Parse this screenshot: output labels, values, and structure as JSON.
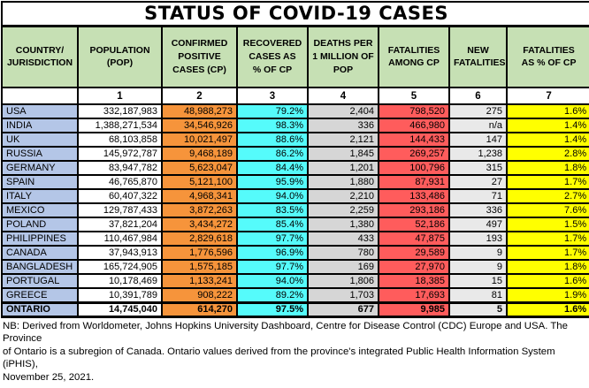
{
  "title": "STATUS OF COVID-19 CASES",
  "table": {
    "headers": [
      "COUNTRY/\nJURISDICTION",
      "POPULATION\n(POP)",
      "CONFIRMED\nPOSITIVE\nCASES (CP)",
      "RECOVERED\nCASES AS\n% OF CP",
      "DEATHS PER\n1 MILLION OF\nPOP",
      "FATALITIES\nAMONG CP",
      "NEW\nFATALITIES",
      "FATALITIES\nAS % OF CP"
    ],
    "column_numbers": [
      "",
      "1",
      "2",
      "3",
      "4",
      "5",
      "6",
      "7"
    ],
    "rows": [
      [
        "USA",
        "332,187,983",
        "48,988,273",
        "79.2%",
        "2,404",
        "798,520",
        "275",
        "1.6%"
      ],
      [
        "INDIA",
        "1,388,271,534",
        "34,546,926",
        "98.3%",
        "336",
        "466,980",
        "n/a",
        "1.4%"
      ],
      [
        "UK",
        "68,103,858",
        "10,021,497",
        "88.6%",
        "2,121",
        "144,433",
        "147",
        "1.4%"
      ],
      [
        "RUSSIA",
        "145,972,787",
        "9,468,189",
        "86.2%",
        "1,845",
        "269,257",
        "1,238",
        "2.8%"
      ],
      [
        "GERMANY",
        "83,947,782",
        "5,623,047",
        "84.4%",
        "1,201",
        "100,796",
        "315",
        "1.8%"
      ],
      [
        "SPAIN",
        "46,765,870",
        "5,121,100",
        "95.9%",
        "1,880",
        "87,931",
        "27",
        "1.7%"
      ],
      [
        "ITALY",
        "60,407,322",
        "4,968,341",
        "94.0%",
        "2,210",
        "133,486",
        "71",
        "2.7%"
      ],
      [
        "MEXICO",
        "129,787,433",
        "3,872,263",
        "83.5%",
        "2,259",
        "293,186",
        "336",
        "7.6%"
      ],
      [
        "POLAND",
        "37,821,204",
        "3,434,272",
        "85.4%",
        "1,380",
        "52,186",
        "497",
        "1.5%"
      ],
      [
        "PHILIPPINES",
        "110,467,984",
        "2,829,618",
        "97.7%",
        "433",
        "47,875",
        "193",
        "1.7%"
      ],
      [
        "CANADA",
        "37,943,913",
        "1,776,596",
        "96.9%",
        "780",
        "29,589",
        "9",
        "1.7%"
      ],
      [
        "BANGLADESH",
        "165,724,905",
        "1,575,185",
        "97.7%",
        "169",
        "27,970",
        "9",
        "1.8%"
      ],
      [
        "PORTUGAL",
        "10,178,469",
        "1,133,241",
        "94.0%",
        "1,806",
        "18,385",
        "15",
        "1.6%"
      ],
      [
        "GREECE",
        "10,391,789",
        "908,222",
        "89.2%",
        "1,703",
        "17,693",
        "81",
        "1.9%"
      ],
      [
        "ONTARIO",
        "14,745,040",
        "614,270",
        "97.5%",
        "677",
        "9,985",
        "5",
        "1.6%"
      ]
    ],
    "emphasized_row_index": 14,
    "cell_names": [
      "cell-country",
      "cell-population",
      "cell-confirmed-positive",
      "cell-recovered-pct",
      "cell-deaths-per-million",
      "cell-fatalities",
      "cell-new-fatalities",
      "cell-fatalities-pct"
    ]
  },
  "footnote_lines": [
    "NB: Derived from Worldometer, Johns Hopkins University Dashboard, Centre for Disease Control (CDC) Europe and USA. The Province",
    "of Ontario is a subregion of Canada. Ontario values derived from the province's integrated Public Health Information System (iPHIS),",
    "November 25, 2021."
  ],
  "colors": {
    "header_green": "#C6E0B4",
    "country_blue": "#B4C6E7",
    "population_white": "#FFFFFF",
    "confirmed_orange": "#F6943B",
    "recovered_cyan": "#55FBFB",
    "deaths_gray": "#D6D6D6",
    "fatalities_red": "#FF5C5C",
    "new_fatalities_gray": "#E9E9E9",
    "fatalities_pct_yellow": "#FFFF00"
  }
}
